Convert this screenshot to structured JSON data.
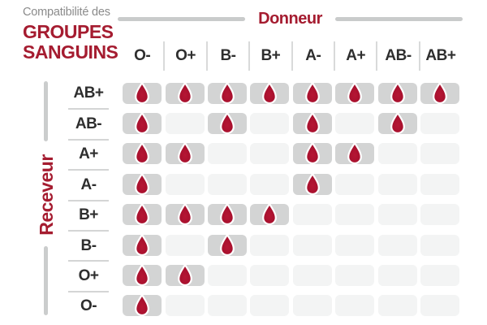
{
  "title": {
    "eyebrow": "Compatibilité des",
    "line1": "GROUPES",
    "line2": "SANGUINS"
  },
  "donor_axis_label": "Donneur",
  "receiver_axis_label": "Receveur",
  "chart_data": {
    "type": "heatmap",
    "title": "Compatibilité des groupes sanguins",
    "x_axis_label": "Donneur",
    "y_axis_label": "Receveur",
    "columns": [
      "O-",
      "O+",
      "B-",
      "B+",
      "A-",
      "A+",
      "AB-",
      "AB+"
    ],
    "rows": [
      "AB+",
      "AB-",
      "A+",
      "A-",
      "B+",
      "B-",
      "O+",
      "O-"
    ],
    "matrix": [
      [
        1,
        1,
        1,
        1,
        1,
        1,
        1,
        1
      ],
      [
        1,
        0,
        1,
        0,
        1,
        0,
        1,
        0
      ],
      [
        1,
        1,
        0,
        0,
        1,
        1,
        0,
        0
      ],
      [
        1,
        0,
        0,
        0,
        1,
        0,
        0,
        0
      ],
      [
        1,
        1,
        1,
        1,
        0,
        0,
        0,
        0
      ],
      [
        1,
        0,
        1,
        0,
        0,
        0,
        0,
        0
      ],
      [
        1,
        1,
        0,
        0,
        0,
        0,
        0,
        0
      ],
      [
        1,
        0,
        0,
        0,
        0,
        0,
        0,
        0
      ]
    ],
    "marker": "blood-drop"
  },
  "colors": {
    "accent_red": "#a51c30",
    "drop_fill": "#a50f2c",
    "drop_fill_dark": "#8d0a23",
    "filled_cell": "#d3d4d4",
    "empty_cell": "#f3f4f4",
    "line_gray": "#c9cbcb",
    "text_dark": "#2e2e2e",
    "text_gray": "#8b8b8b"
  }
}
